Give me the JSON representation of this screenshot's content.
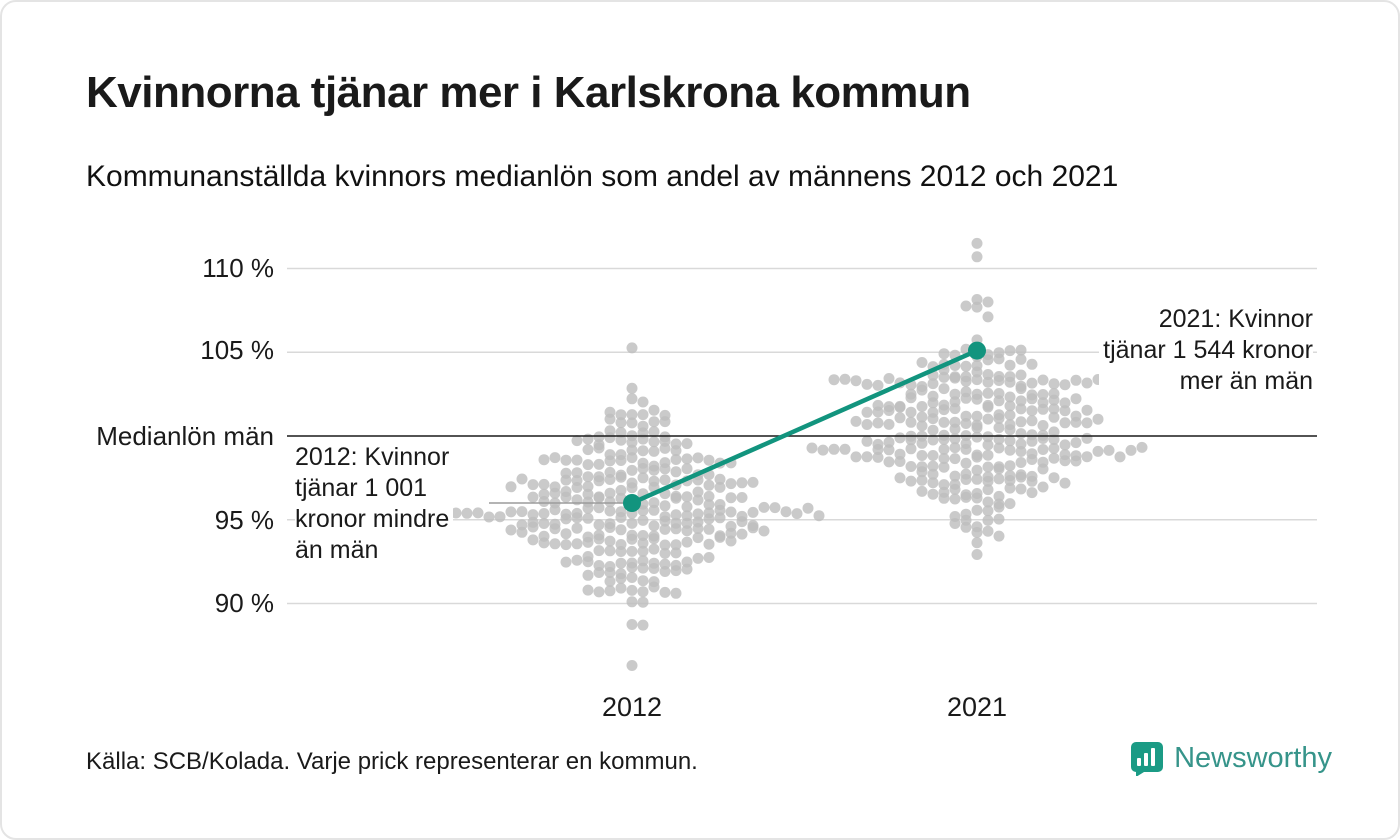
{
  "header": {
    "title": "Kvinnorna tjänar mer i Karlskrona kommun",
    "subtitle": "Kommunanställda kvinnors medianlön som andel av männens 2012 och 2021"
  },
  "chart_data": {
    "type": "scatter",
    "variant": "beeswarm-slope",
    "title": "Kvinnorna tjänar mer i Karlskrona kommun",
    "subtitle": "Kommunanställda kvinnors medianlön som andel av männens 2012 och 2021",
    "categories": [
      "2012",
      "2021"
    ],
    "unit": "%",
    "y_axis": {
      "ticks": [
        {
          "value": 110,
          "label": "110 %"
        },
        {
          "value": 105,
          "label": "105 %"
        },
        {
          "value": 95,
          "label": "95 %"
        },
        {
          "value": 90,
          "label": "90 %"
        }
      ],
      "baseline": {
        "value": 100,
        "label": "Medianlön män"
      },
      "range": [
        85.5,
        112.5
      ],
      "grid": true
    },
    "highlight": {
      "name": "Karlskrona kommun",
      "color": "#12947e",
      "points": [
        {
          "category": "2012",
          "value": 96.0
        },
        {
          "category": "2021",
          "value": 105.1
        }
      ]
    },
    "annotations": [
      {
        "target": "2012",
        "align": "left",
        "lines": [
          "2012: Kvinnor",
          "tjänar 1 001",
          "kronor mindre",
          "än män"
        ]
      },
      {
        "target": "2021",
        "align": "right",
        "lines": [
          "2021: Kvinnor",
          "tjänar 1 544 kronor",
          "mer än män"
        ]
      }
    ],
    "distributions": [
      {
        "category": "2012",
        "mean": 95.7,
        "sd": 2.7,
        "min": 88.4,
        "max": 105.8,
        "count": 286,
        "outliers": [
          86.3
        ],
        "seed": 7
      },
      {
        "category": "2021",
        "mean": 100.2,
        "sd": 2.9,
        "min": 92.2,
        "max": 110.0,
        "count": 286,
        "outliers": [
          110.7,
          111.5
        ],
        "seed": 13
      }
    ],
    "colors": {
      "dot": "#bdbdbd",
      "grid": "#d9d9d9",
      "baseline": "#1a1a1a",
      "highlight": "#12947e",
      "connector": "#9b9b9b"
    }
  },
  "footer": {
    "source": "Källa: SCB/Kolada. Varje prick representerar en kommun."
  },
  "brand": {
    "name": "Newsworthy",
    "icon_color": "#1b9b85",
    "text_color": "#36948a"
  }
}
